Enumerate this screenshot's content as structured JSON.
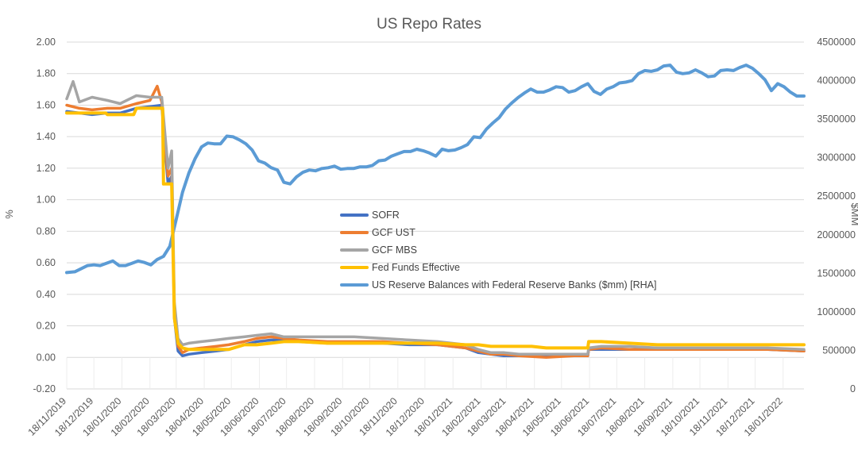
{
  "chart_data": {
    "type": "line",
    "title": "US Repo Rates",
    "ylabel": "%",
    "y2label": "$MM",
    "ylim": [
      -0.2,
      2.0
    ],
    "y2lim": [
      0,
      4500000
    ],
    "yticks": [
      "-0.20",
      "0.00",
      "0.20",
      "0.40",
      "0.60",
      "0.80",
      "1.00",
      "1.20",
      "1.40",
      "1.60",
      "1.80",
      "2.00"
    ],
    "y2ticks": [
      "0",
      "500000",
      "1000000",
      "1500000",
      "2000000",
      "2500000",
      "3000000",
      "3500000",
      "4000000",
      "4500000"
    ],
    "xlim": [
      "2019-11-18",
      "2022-02-10"
    ],
    "xticks": [
      "18/11/2019",
      "18/12/2019",
      "18/01/2020",
      "18/02/2020",
      "18/03/2020",
      "18/04/2020",
      "18/05/2020",
      "18/06/2020",
      "18/07/2020",
      "18/08/2020",
      "18/09/2020",
      "18/10/2020",
      "18/11/2020",
      "18/12/2020",
      "18/01/2021",
      "18/02/2021",
      "18/03/2021",
      "18/04/2021",
      "18/05/2021",
      "18/06/2021",
      "18/07/2021",
      "18/08/2021",
      "18/09/2021",
      "18/10/2021",
      "18/11/2021",
      "18/12/2021",
      "18/01/2022"
    ],
    "legend_position": "center",
    "grid": true,
    "series": [
      {
        "name": "SOFR",
        "axis": "left",
        "color": "#4472C4",
        "x": [
          "2019-11-18",
          "2019-12-02",
          "2019-12-16",
          "2020-01-02",
          "2020-01-16",
          "2020-02-03",
          "2020-02-18",
          "2020-03-02",
          "2020-03-09",
          "2020-03-13",
          "2020-03-16",
          "2020-03-20",
          "2020-03-25",
          "2020-04-01",
          "2020-04-15",
          "2020-05-01",
          "2020-05-15",
          "2020-06-01",
          "2020-06-15",
          "2020-07-01",
          "2020-07-15",
          "2020-08-01",
          "2020-09-01",
          "2020-10-01",
          "2020-11-01",
          "2020-12-01",
          "2021-01-01",
          "2021-02-01",
          "2021-02-15",
          "2021-03-01",
          "2021-03-15",
          "2021-04-01",
          "2021-05-01",
          "2021-06-01",
          "2021-06-16",
          "2021-06-17",
          "2021-07-01",
          "2021-08-01",
          "2021-09-01",
          "2021-10-01",
          "2021-11-01",
          "2021-12-01",
          "2022-01-01",
          "2022-02-10"
        ],
        "y": [
          1.56,
          1.55,
          1.54,
          1.55,
          1.55,
          1.58,
          1.59,
          1.6,
          1.1,
          1.15,
          0.25,
          0.04,
          0.01,
          0.02,
          0.03,
          0.04,
          0.05,
          0.08,
          0.1,
          0.11,
          0.11,
          0.1,
          0.09,
          0.09,
          0.09,
          0.08,
          0.08,
          0.06,
          0.03,
          0.02,
          0.01,
          0.01,
          0.01,
          0.01,
          0.01,
          0.05,
          0.05,
          0.05,
          0.05,
          0.05,
          0.05,
          0.05,
          0.05,
          0.04
        ]
      },
      {
        "name": "GCF UST",
        "axis": "left",
        "color": "#ED7D31",
        "x": [
          "2019-11-18",
          "2019-12-02",
          "2019-12-16",
          "2020-01-02",
          "2020-01-16",
          "2020-02-03",
          "2020-02-18",
          "2020-02-26",
          "2020-03-02",
          "2020-03-09",
          "2020-03-13",
          "2020-03-16",
          "2020-03-20",
          "2020-03-25",
          "2020-04-01",
          "2020-04-15",
          "2020-05-01",
          "2020-05-15",
          "2020-06-01",
          "2020-06-15",
          "2020-07-01",
          "2020-07-15",
          "2020-08-01",
          "2020-09-01",
          "2020-10-01",
          "2020-11-01",
          "2020-12-01",
          "2021-01-01",
          "2021-02-01",
          "2021-02-15",
          "2021-03-01",
          "2021-03-15",
          "2021-04-01",
          "2021-05-01",
          "2021-06-01",
          "2021-06-16",
          "2021-06-17",
          "2021-07-01",
          "2021-08-01",
          "2021-09-01",
          "2021-10-01",
          "2021-11-01",
          "2021-12-01",
          "2022-01-01",
          "2022-02-10"
        ],
        "y": [
          1.6,
          1.58,
          1.57,
          1.58,
          1.58,
          1.61,
          1.63,
          1.72,
          1.62,
          1.15,
          1.2,
          0.28,
          0.07,
          0.03,
          0.05,
          0.06,
          0.07,
          0.08,
          0.1,
          0.12,
          0.13,
          0.12,
          0.11,
          0.1,
          0.1,
          0.1,
          0.09,
          0.08,
          0.06,
          0.04,
          0.02,
          0.02,
          0.01,
          0.0,
          0.01,
          0.01,
          0.05,
          0.06,
          0.05,
          0.05,
          0.05,
          0.05,
          0.05,
          0.05,
          0.04
        ]
      },
      {
        "name": "GCF MBS",
        "axis": "left",
        "color": "#A5A5A5",
        "x": [
          "2019-11-18",
          "2019-11-25",
          "2019-12-02",
          "2019-12-16",
          "2020-01-02",
          "2020-01-16",
          "2020-02-03",
          "2020-02-18",
          "2020-03-02",
          "2020-03-09",
          "2020-03-13",
          "2020-03-16",
          "2020-03-20",
          "2020-03-25",
          "2020-04-01",
          "2020-04-15",
          "2020-05-01",
          "2020-05-15",
          "2020-06-01",
          "2020-06-15",
          "2020-07-01",
          "2020-07-15",
          "2020-08-01",
          "2020-09-01",
          "2020-10-01",
          "2020-11-01",
          "2020-12-01",
          "2021-01-01",
          "2021-02-01",
          "2021-02-15",
          "2021-03-01",
          "2021-03-15",
          "2021-04-01",
          "2021-05-01",
          "2021-06-01",
          "2021-06-16",
          "2021-06-17",
          "2021-07-01",
          "2021-08-01",
          "2021-09-01",
          "2021-10-01",
          "2021-11-01",
          "2021-12-01",
          "2022-01-01",
          "2022-02-10"
        ],
        "y": [
          1.64,
          1.75,
          1.62,
          1.65,
          1.63,
          1.61,
          1.66,
          1.65,
          1.65,
          1.2,
          1.31,
          0.35,
          0.12,
          0.08,
          0.09,
          0.1,
          0.11,
          0.12,
          0.13,
          0.14,
          0.15,
          0.13,
          0.13,
          0.13,
          0.13,
          0.12,
          0.11,
          0.1,
          0.08,
          0.05,
          0.03,
          0.03,
          0.02,
          0.02,
          0.02,
          0.02,
          0.06,
          0.07,
          0.07,
          0.06,
          0.06,
          0.06,
          0.06,
          0.06,
          0.05
        ]
      },
      {
        "name": "Fed Funds Effective",
        "axis": "left",
        "color": "#FFC000",
        "x": [
          "2019-11-18",
          "2019-12-31",
          "2020-01-02",
          "2020-01-31",
          "2020-02-03",
          "2020-03-03",
          "2020-03-04",
          "2020-03-13",
          "2020-03-16",
          "2020-03-20",
          "2020-03-25",
          "2020-04-01",
          "2020-04-15",
          "2020-05-01",
          "2020-05-15",
          "2020-06-01",
          "2020-06-15",
          "2020-07-01",
          "2020-07-15",
          "2020-08-01",
          "2020-09-01",
          "2020-10-01",
          "2020-11-01",
          "2020-12-01",
          "2021-01-01",
          "2021-02-01",
          "2021-02-15",
          "2021-03-01",
          "2021-04-01",
          "2021-04-15",
          "2021-05-01",
          "2021-06-01",
          "2021-06-16",
          "2021-06-17",
          "2021-07-01",
          "2021-08-01",
          "2021-09-01",
          "2021-10-01",
          "2021-11-01",
          "2021-12-01",
          "2022-01-01",
          "2022-02-10"
        ],
        "y": [
          1.55,
          1.55,
          1.54,
          1.54,
          1.58,
          1.58,
          1.1,
          1.1,
          0.25,
          0.09,
          0.06,
          0.05,
          0.05,
          0.05,
          0.05,
          0.08,
          0.08,
          0.09,
          0.1,
          0.1,
          0.09,
          0.09,
          0.09,
          0.09,
          0.09,
          0.08,
          0.08,
          0.07,
          0.07,
          0.07,
          0.06,
          0.06,
          0.06,
          0.1,
          0.1,
          0.09,
          0.08,
          0.08,
          0.08,
          0.08,
          0.08,
          0.08
        ]
      },
      {
        "name": "US Reserve Balances with Federal Reserve Banks ($mm)  [RHA]",
        "axis": "right",
        "color": "#5B9BD5",
        "x": [
          "2019-11-18",
          "2019-11-27",
          "2019-12-11",
          "2019-12-18",
          "2019-12-25",
          "2020-01-08",
          "2020-01-15",
          "2020-01-22",
          "2020-01-29",
          "2020-02-05",
          "2020-02-12",
          "2020-02-19",
          "2020-02-26",
          "2020-03-04",
          "2020-03-11",
          "2020-03-18",
          "2020-03-25",
          "2020-04-01",
          "2020-04-08",
          "2020-04-15",
          "2020-04-22",
          "2020-04-29",
          "2020-05-06",
          "2020-05-13",
          "2020-05-20",
          "2020-05-27",
          "2020-06-03",
          "2020-06-10",
          "2020-06-17",
          "2020-06-24",
          "2020-07-01",
          "2020-07-08",
          "2020-07-15",
          "2020-07-22",
          "2020-07-29",
          "2020-08-05",
          "2020-08-12",
          "2020-08-19",
          "2020-08-26",
          "2020-09-02",
          "2020-09-09",
          "2020-09-16",
          "2020-09-23",
          "2020-09-30",
          "2020-10-07",
          "2020-10-14",
          "2020-10-21",
          "2020-10-28",
          "2020-11-04",
          "2020-11-11",
          "2020-11-18",
          "2020-11-25",
          "2020-12-02",
          "2020-12-09",
          "2020-12-16",
          "2020-12-23",
          "2020-12-30",
          "2021-01-06",
          "2021-01-13",
          "2021-01-20",
          "2021-01-27",
          "2021-02-03",
          "2021-02-10",
          "2021-02-17",
          "2021-02-24",
          "2021-03-03",
          "2021-03-10",
          "2021-03-17",
          "2021-03-24",
          "2021-03-31",
          "2021-04-07",
          "2021-04-14",
          "2021-04-21",
          "2021-04-28",
          "2021-05-05",
          "2021-05-12",
          "2021-05-19",
          "2021-05-26",
          "2021-06-02",
          "2021-06-09",
          "2021-06-16",
          "2021-06-23",
          "2021-06-30",
          "2021-07-07",
          "2021-07-14",
          "2021-07-21",
          "2021-07-28",
          "2021-08-04",
          "2021-08-11",
          "2021-08-18",
          "2021-08-25",
          "2021-09-01",
          "2021-09-08",
          "2021-09-15",
          "2021-09-22",
          "2021-09-29",
          "2021-10-06",
          "2021-10-13",
          "2021-10-20",
          "2021-10-27",
          "2021-11-03",
          "2021-11-10",
          "2021-11-17",
          "2021-11-24",
          "2021-12-01",
          "2021-12-08",
          "2021-12-15",
          "2021-12-22",
          "2021-12-29",
          "2022-01-05",
          "2022-01-12",
          "2022-01-19",
          "2022-01-26",
          "2022-02-02",
          "2022-02-10"
        ],
        "y": [
          1510000,
          1520000,
          1600000,
          1610000,
          1600000,
          1660000,
          1600000,
          1600000,
          1630000,
          1660000,
          1640000,
          1610000,
          1680000,
          1720000,
          1850000,
          2200000,
          2550000,
          2800000,
          2990000,
          3140000,
          3190000,
          3180000,
          3180000,
          3280000,
          3270000,
          3230000,
          3180000,
          3100000,
          2960000,
          2930000,
          2870000,
          2840000,
          2680000,
          2660000,
          2750000,
          2810000,
          2840000,
          2830000,
          2860000,
          2870000,
          2890000,
          2850000,
          2860000,
          2860000,
          2880000,
          2880000,
          2900000,
          2960000,
          2970000,
          3020000,
          3050000,
          3080000,
          3080000,
          3110000,
          3090000,
          3060000,
          3020000,
          3110000,
          3090000,
          3100000,
          3130000,
          3170000,
          3270000,
          3260000,
          3370000,
          3450000,
          3520000,
          3630000,
          3710000,
          3780000,
          3840000,
          3890000,
          3850000,
          3850000,
          3880000,
          3920000,
          3910000,
          3850000,
          3870000,
          3920000,
          3960000,
          3860000,
          3820000,
          3890000,
          3920000,
          3970000,
          3980000,
          4000000,
          4090000,
          4130000,
          4120000,
          4140000,
          4190000,
          4200000,
          4110000,
          4090000,
          4100000,
          4140000,
          4100000,
          4050000,
          4060000,
          4130000,
          4140000,
          4130000,
          4170000,
          4200000,
          4160000,
          4090000,
          4010000,
          3870000,
          3960000,
          3920000,
          3850000,
          3800000,
          3800000
        ]
      }
    ]
  }
}
